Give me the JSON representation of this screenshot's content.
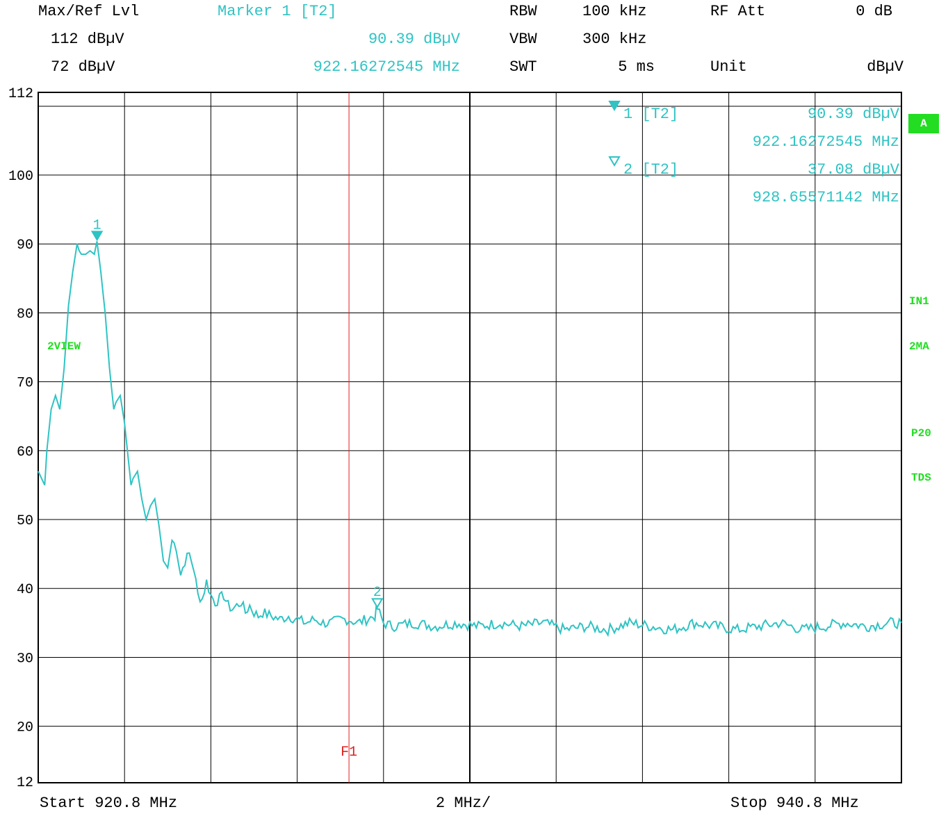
{
  "header": {
    "row1": {
      "maxref_label": "Max/Ref Lvl",
      "marker_label": "Marker 1 [T2]",
      "rbw_label": "RBW",
      "rbw_value": "100 kHz",
      "rfatt_label": "RF Att",
      "rfatt_value": "0 dB"
    },
    "row2": {
      "maxref_value": "112 dBµV",
      "marker_level": "90.39 dBµV",
      "vbw_label": "VBW",
      "vbw_value": "300 kHz"
    },
    "row3": {
      "ref_value": "72 dBµV",
      "marker_freq": "922.16272545 MHz",
      "swt_label": "SWT",
      "swt_value": "5 ms",
      "unit_label": "Unit",
      "unit_value": "dBµV"
    }
  },
  "marker_info": {
    "m1_label": "1  [T2]",
    "m1_level": "90.39 dBµV",
    "m1_freq": "922.16272545 MHz",
    "m2_label": "2  [T2]",
    "m2_level": "37.08 dBµV",
    "m2_freq": "928.65571142 MHz"
  },
  "side_labels": {
    "a": "A",
    "in1": "IN1",
    "twoma": "2MA",
    "p20": "P20",
    "tds": "TDS",
    "view": "2VIEW"
  },
  "footer": {
    "start": "Start 920.8 MHz",
    "div": "2 MHz/",
    "stop": "Stop 940.8 MHz"
  },
  "colors": {
    "trace": "#2fc3c3",
    "grid": "#000000",
    "f1_line": "#e02020",
    "status_green": "#22dd22"
  },
  "chart_data": {
    "type": "line",
    "title": "",
    "xlabel": "",
    "ylabel": "",
    "xlim": [
      920.8,
      940.8
    ],
    "ylim": [
      12,
      112
    ],
    "y_ticks": [
      112,
      100,
      90,
      80,
      70,
      60,
      50,
      40,
      30,
      20,
      12
    ],
    "x_unit": "MHz",
    "y_unit": "dBµV",
    "grid": true,
    "f1_line": {
      "x": 928.0,
      "label": "F1"
    },
    "markers": [
      {
        "id": "1",
        "x": 922.16272545,
        "y": 90.39,
        "filled": true
      },
      {
        "id": "2",
        "x": 928.65571142,
        "y": 37.08,
        "filled": false
      }
    ],
    "series": [
      {
        "x": [
          920.8,
          920.95,
          921.0,
          921.1,
          921.2,
          921.3,
          921.4,
          921.5,
          921.6,
          921.7,
          921.75,
          921.8,
          921.9,
          922.0,
          922.1,
          922.16,
          922.25,
          922.35,
          922.45,
          922.55,
          922.6,
          922.7,
          922.8,
          922.9,
          922.95,
          923.0,
          923.1,
          923.2,
          923.3,
          923.4,
          923.5,
          923.6,
          923.7,
          923.8,
          923.9,
          924.0,
          924.1,
          924.2,
          924.3,
          924.4,
          924.5,
          924.6,
          924.7,
          924.8,
          924.9,
          925.0,
          925.1,
          925.2,
          925.3,
          925.4,
          925.5,
          925.6,
          925.7,
          925.8,
          925.9,
          926.0,
          926.2,
          926.4,
          926.6,
          926.8,
          927.0,
          927.2,
          927.4,
          927.6,
          927.8,
          928.0,
          928.2,
          928.4,
          928.6,
          928.66,
          928.8,
          929.0,
          929.5,
          930.0,
          930.5,
          931.0,
          931.5,
          932.0,
          932.5,
          933.0,
          933.5,
          934.0,
          934.5,
          935.0,
          935.5,
          936.0,
          936.5,
          937.0,
          937.5,
          938.0,
          938.5,
          939.0,
          939.5,
          940.0,
          940.5,
          940.8
        ],
        "y": [
          57,
          55,
          60,
          66,
          68,
          66,
          72,
          81,
          86,
          90,
          89,
          88.5,
          88.5,
          89,
          88.5,
          90.39,
          86,
          80,
          72,
          66,
          67,
          68,
          64,
          58,
          55,
          56,
          57,
          53,
          50,
          52,
          53,
          49,
          44,
          43,
          47,
          46,
          42,
          44,
          45,
          43,
          39,
          38.5,
          41,
          39,
          38,
          38.5,
          39,
          37.5,
          37,
          37.5,
          38,
          36.5,
          37.5,
          36.5,
          36,
          36.5,
          36,
          35.5,
          36,
          35.5,
          35,
          35.5,
          35,
          35,
          35.5,
          35.5,
          35,
          35.5,
          36,
          37.08,
          35,
          34.5,
          35,
          34.5,
          35,
          34.5,
          35,
          34.5,
          35,
          34,
          34.5,
          34,
          35,
          34.5,
          34,
          35,
          34.5,
          34,
          34.5,
          35,
          34,
          34.5,
          35,
          34.5,
          35,
          35
        ]
      }
    ]
  }
}
